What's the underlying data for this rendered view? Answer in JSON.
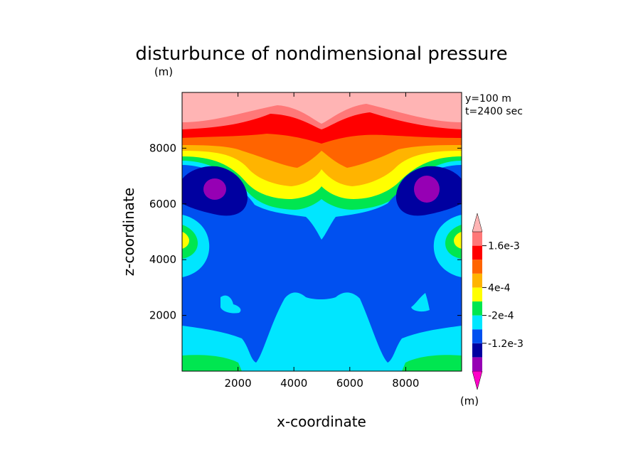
{
  "chart_data": {
    "type": "heatmap",
    "title": "disturbunce of nondimensional pressure",
    "title_unit": "(m)",
    "xlabel": "x-coordinate",
    "ylabel": "z-coordinate",
    "xlim": [
      0,
      10000
    ],
    "ylim": [
      0,
      10000
    ],
    "xticks": [
      "2000",
      "4000",
      "6000",
      "8000"
    ],
    "yticks": [
      "2000",
      "4000",
      "6000",
      "8000"
    ],
    "annotations": [
      "y=100 m",
      "t=2400 sec"
    ],
    "colorbar": {
      "unit": "(m)",
      "labels": [
        "1.6e-3",
        "4e-4",
        "-2e-4",
        "-1.2e-3"
      ],
      "colors": [
        "#ff00c8",
        "#9600b4",
        "#0000a0",
        "#0050f0",
        "#00e6ff",
        "#00e650",
        "#ffff00",
        "#ffb400",
        "#ff6400",
        "#ff0000",
        "#ff7878",
        "#ffb4b4"
      ]
    }
  }
}
